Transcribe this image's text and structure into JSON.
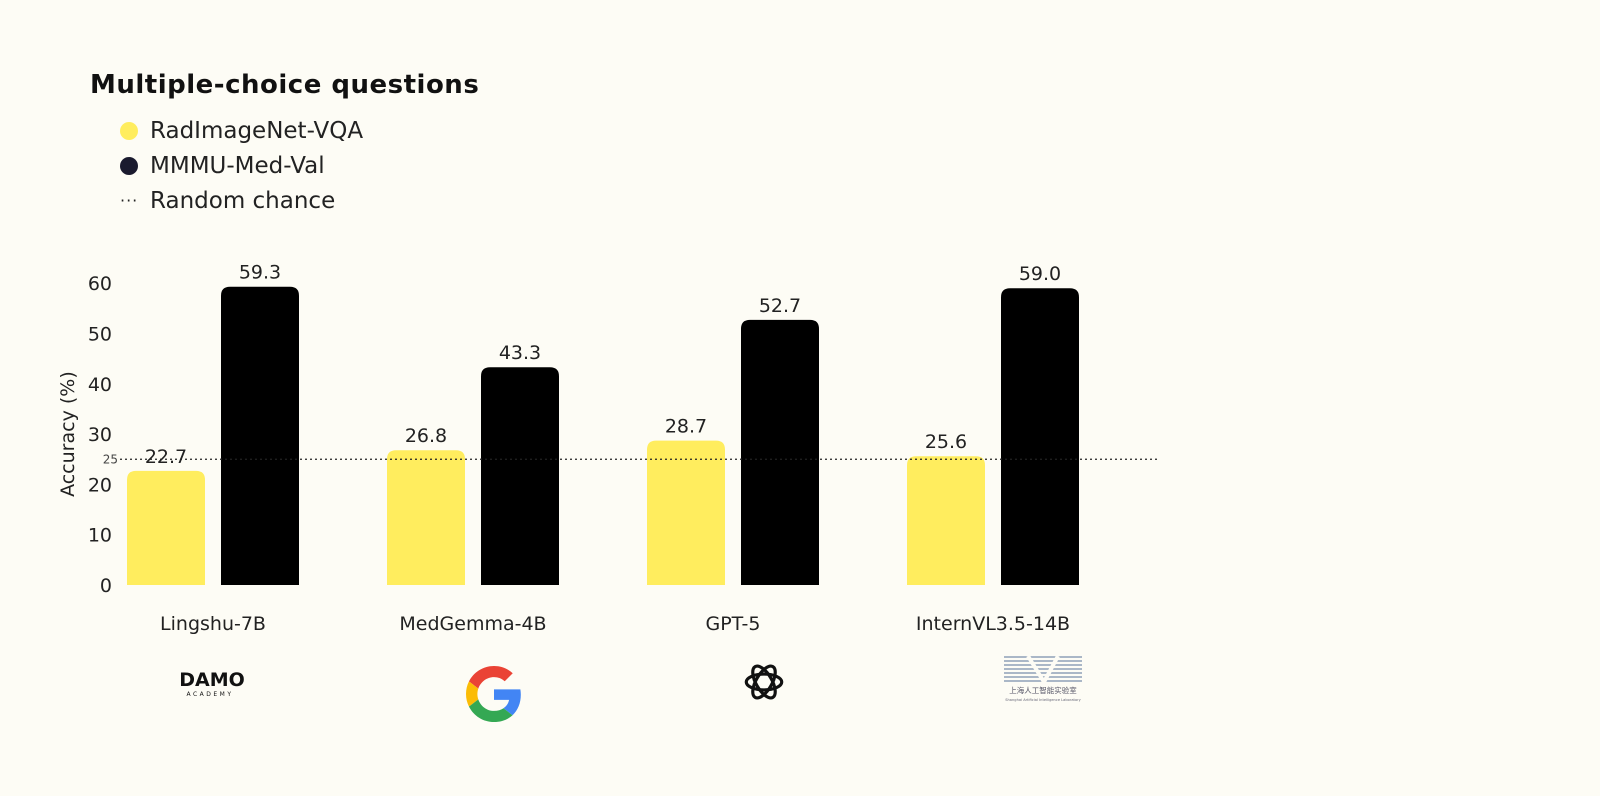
{
  "chart_data": {
    "type": "bar",
    "title": "Multiple-choice questions",
    "xlabel": "",
    "ylabel": "Accuracy (%)",
    "ylim": [
      0,
      60
    ],
    "yticks": [
      0,
      10,
      20,
      30,
      40,
      50,
      60
    ],
    "grid": false,
    "legend_position": "top-left",
    "categories": [
      "Lingshu-7B",
      "MedGemma-4B",
      "GPT-5",
      "InternVL3.5-14B"
    ],
    "series": [
      {
        "name": "RadImageNet-VQA",
        "color": "#ffed5e",
        "values": [
          22.7,
          26.8,
          28.7,
          25.6
        ]
      },
      {
        "name": "MMMU-Med-Val",
        "color": "#000000",
        "values": [
          59.3,
          43.3,
          52.7,
          59.0
        ]
      }
    ],
    "reference_line": {
      "name": "Random chance",
      "value": 25,
      "label": "25",
      "style": "dotted"
    }
  },
  "legend": {
    "items": [
      {
        "label": "RadImageNet-VQA",
        "color": "#ffed5e",
        "icon": "circle"
      },
      {
        "label": "MMMU-Med-Val",
        "color": "#1a1a2e",
        "icon": "circle"
      },
      {
        "label": "Random chance",
        "icon": "dotted-line",
        "symbol": "···"
      }
    ]
  },
  "logos": [
    {
      "name": "damo-academy-logo",
      "text": "DAMO",
      "subtext": "ACADEMY"
    },
    {
      "name": "google-logo",
      "text": "G"
    },
    {
      "name": "openai-logo"
    },
    {
      "name": "shanghai-ai-lab-logo",
      "text": "上海人工智能实验室",
      "subtext": "Shanghai Artificial Intelligence Laboratory"
    }
  ]
}
